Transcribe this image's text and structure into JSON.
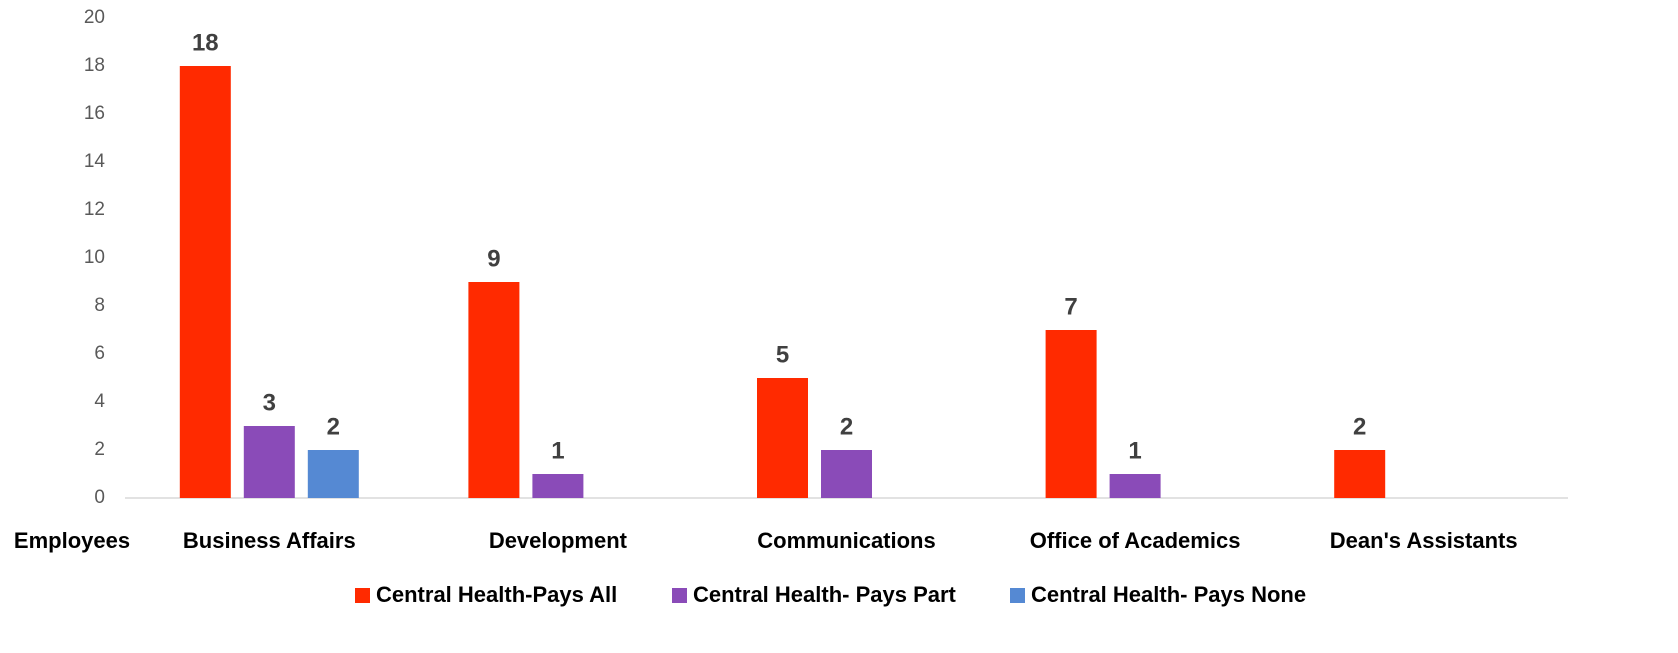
{
  "chart_data": {
    "type": "bar",
    "x_label": "Employees",
    "categories": [
      "Business Affairs",
      "Development",
      "Communications",
      "Office of Academics",
      "Dean's Assistants"
    ],
    "series": [
      {
        "name": "Central Health-Pays All",
        "color": "#ff2a00",
        "values": [
          18,
          9,
          5,
          7,
          2
        ]
      },
      {
        "name": "Central Health- Pays Part",
        "color": "#8a4bb8",
        "values": [
          3,
          1,
          2,
          1,
          null
        ]
      },
      {
        "name": "Central Health- Pays None",
        "color": "#5589d3",
        "values": [
          2,
          null,
          null,
          null,
          null
        ]
      }
    ],
    "ylim": [
      0,
      20
    ],
    "yticks": [
      0,
      2,
      4,
      6,
      8,
      10,
      12,
      14,
      16,
      18,
      20
    ],
    "legend": "bottom"
  }
}
